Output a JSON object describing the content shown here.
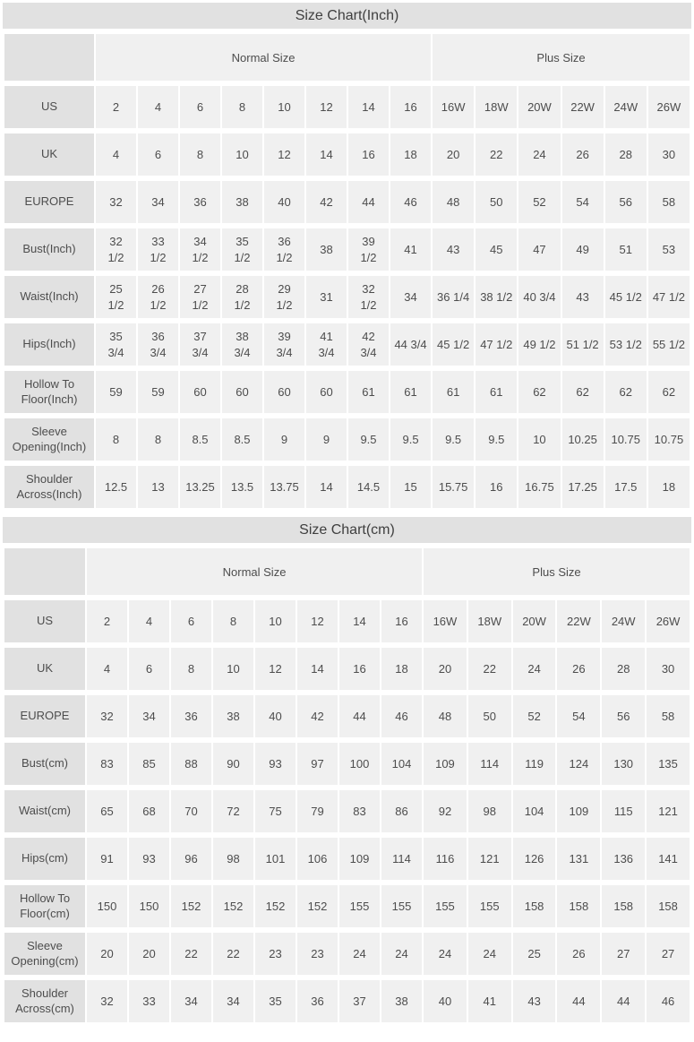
{
  "colors": {
    "title_bar_bg": "#e1e1e1",
    "label_cell_bg": "#e1e1e1",
    "data_cell_bg": "#f0f0f0",
    "title_text": "#3f3f3f",
    "cell_text": "#4d4d4d",
    "page_bg": "#ffffff"
  },
  "tables": [
    {
      "title": "Size Chart(Inch)",
      "group_headers": [
        "Normal Size",
        "Plus Size"
      ],
      "rows": [
        {
          "label": "US",
          "values": [
            "2",
            "4",
            "6",
            "8",
            "10",
            "12",
            "14",
            "16",
            "16W",
            "18W",
            "20W",
            "22W",
            "24W",
            "26W"
          ]
        },
        {
          "label": "UK",
          "values": [
            "4",
            "6",
            "8",
            "10",
            "12",
            "14",
            "16",
            "18",
            "20",
            "22",
            "24",
            "26",
            "28",
            "30"
          ]
        },
        {
          "label": "EUROPE",
          "values": [
            "32",
            "34",
            "36",
            "38",
            "40",
            "42",
            "44",
            "46",
            "48",
            "50",
            "52",
            "54",
            "56",
            "58"
          ]
        },
        {
          "label": "Bust(Inch)",
          "values": [
            "32\n1/2",
            "33\n1/2",
            "34\n1/2",
            "35\n1/2",
            "36\n1/2",
            "38",
            "39\n1/2",
            "41",
            "43",
            "45",
            "47",
            "49",
            "51",
            "53"
          ]
        },
        {
          "label": "Waist(Inch)",
          "values": [
            "25\n1/2",
            "26\n1/2",
            "27\n1/2",
            "28\n1/2",
            "29\n1/2",
            "31",
            "32\n1/2",
            "34",
            "36 1/4",
            "38 1/2",
            "40 3/4",
            "43",
            "45 1/2",
            "47 1/2"
          ]
        },
        {
          "label": "Hips(Inch)",
          "values": [
            "35\n3/4",
            "36\n3/4",
            "37\n3/4",
            "38\n3/4",
            "39\n3/4",
            "41\n3/4",
            "42\n3/4",
            "44 3/4",
            "45 1/2",
            "47 1/2",
            "49 1/2",
            "51 1/2",
            "53 1/2",
            "55 1/2"
          ]
        },
        {
          "label": "Hollow To Floor(Inch)",
          "values": [
            "59",
            "59",
            "60",
            "60",
            "60",
            "60",
            "61",
            "61",
            "61",
            "61",
            "62",
            "62",
            "62",
            "62"
          ]
        },
        {
          "label": "Sleeve Opening(Inch)",
          "values": [
            "8",
            "8",
            "8.5",
            "8.5",
            "9",
            "9",
            "9.5",
            "9.5",
            "9.5",
            "9.5",
            "10",
            "10.25",
            "10.75",
            "10.75"
          ]
        },
        {
          "label": "Shoulder Across(Inch)",
          "values": [
            "12.5",
            "13",
            "13.25",
            "13.5",
            "13.75",
            "14",
            "14.5",
            "15",
            "15.75",
            "16",
            "16.75",
            "17.25",
            "17.5",
            "18"
          ]
        }
      ]
    },
    {
      "title": "Size Chart(cm)",
      "group_headers": [
        "Normal Size",
        "Plus Size"
      ],
      "rows": [
        {
          "label": "US",
          "values": [
            "2",
            "4",
            "6",
            "8",
            "10",
            "12",
            "14",
            "16",
            "16W",
            "18W",
            "20W",
            "22W",
            "24W",
            "26W"
          ]
        },
        {
          "label": "UK",
          "values": [
            "4",
            "6",
            "8",
            "10",
            "12",
            "14",
            "16",
            "18",
            "20",
            "22",
            "24",
            "26",
            "28",
            "30"
          ]
        },
        {
          "label": "EUROPE",
          "values": [
            "32",
            "34",
            "36",
            "38",
            "40",
            "42",
            "44",
            "46",
            "48",
            "50",
            "52",
            "54",
            "56",
            "58"
          ]
        },
        {
          "label": "Bust(cm)",
          "values": [
            "83",
            "85",
            "88",
            "90",
            "93",
            "97",
            "100",
            "104",
            "109",
            "114",
            "119",
            "124",
            "130",
            "135"
          ]
        },
        {
          "label": "Waist(cm)",
          "values": [
            "65",
            "68",
            "70",
            "72",
            "75",
            "79",
            "83",
            "86",
            "92",
            "98",
            "104",
            "109",
            "115",
            "121"
          ]
        },
        {
          "label": "Hips(cm)",
          "values": [
            "91",
            "93",
            "96",
            "98",
            "101",
            "106",
            "109",
            "114",
            "116",
            "121",
            "126",
            "131",
            "136",
            "141"
          ]
        },
        {
          "label": "Hollow To Floor(cm)",
          "values": [
            "150",
            "150",
            "152",
            "152",
            "152",
            "152",
            "155",
            "155",
            "155",
            "155",
            "158",
            "158",
            "158",
            "158"
          ]
        },
        {
          "label": "Sleeve Opening(cm)",
          "values": [
            "20",
            "20",
            "22",
            "22",
            "23",
            "23",
            "24",
            "24",
            "24",
            "24",
            "25",
            "26",
            "27",
            "27"
          ]
        },
        {
          "label": "Shoulder Across(cm)",
          "values": [
            "32",
            "33",
            "34",
            "34",
            "35",
            "36",
            "37",
            "38",
            "40",
            "41",
            "43",
            "44",
            "44",
            "46"
          ]
        }
      ]
    }
  ]
}
